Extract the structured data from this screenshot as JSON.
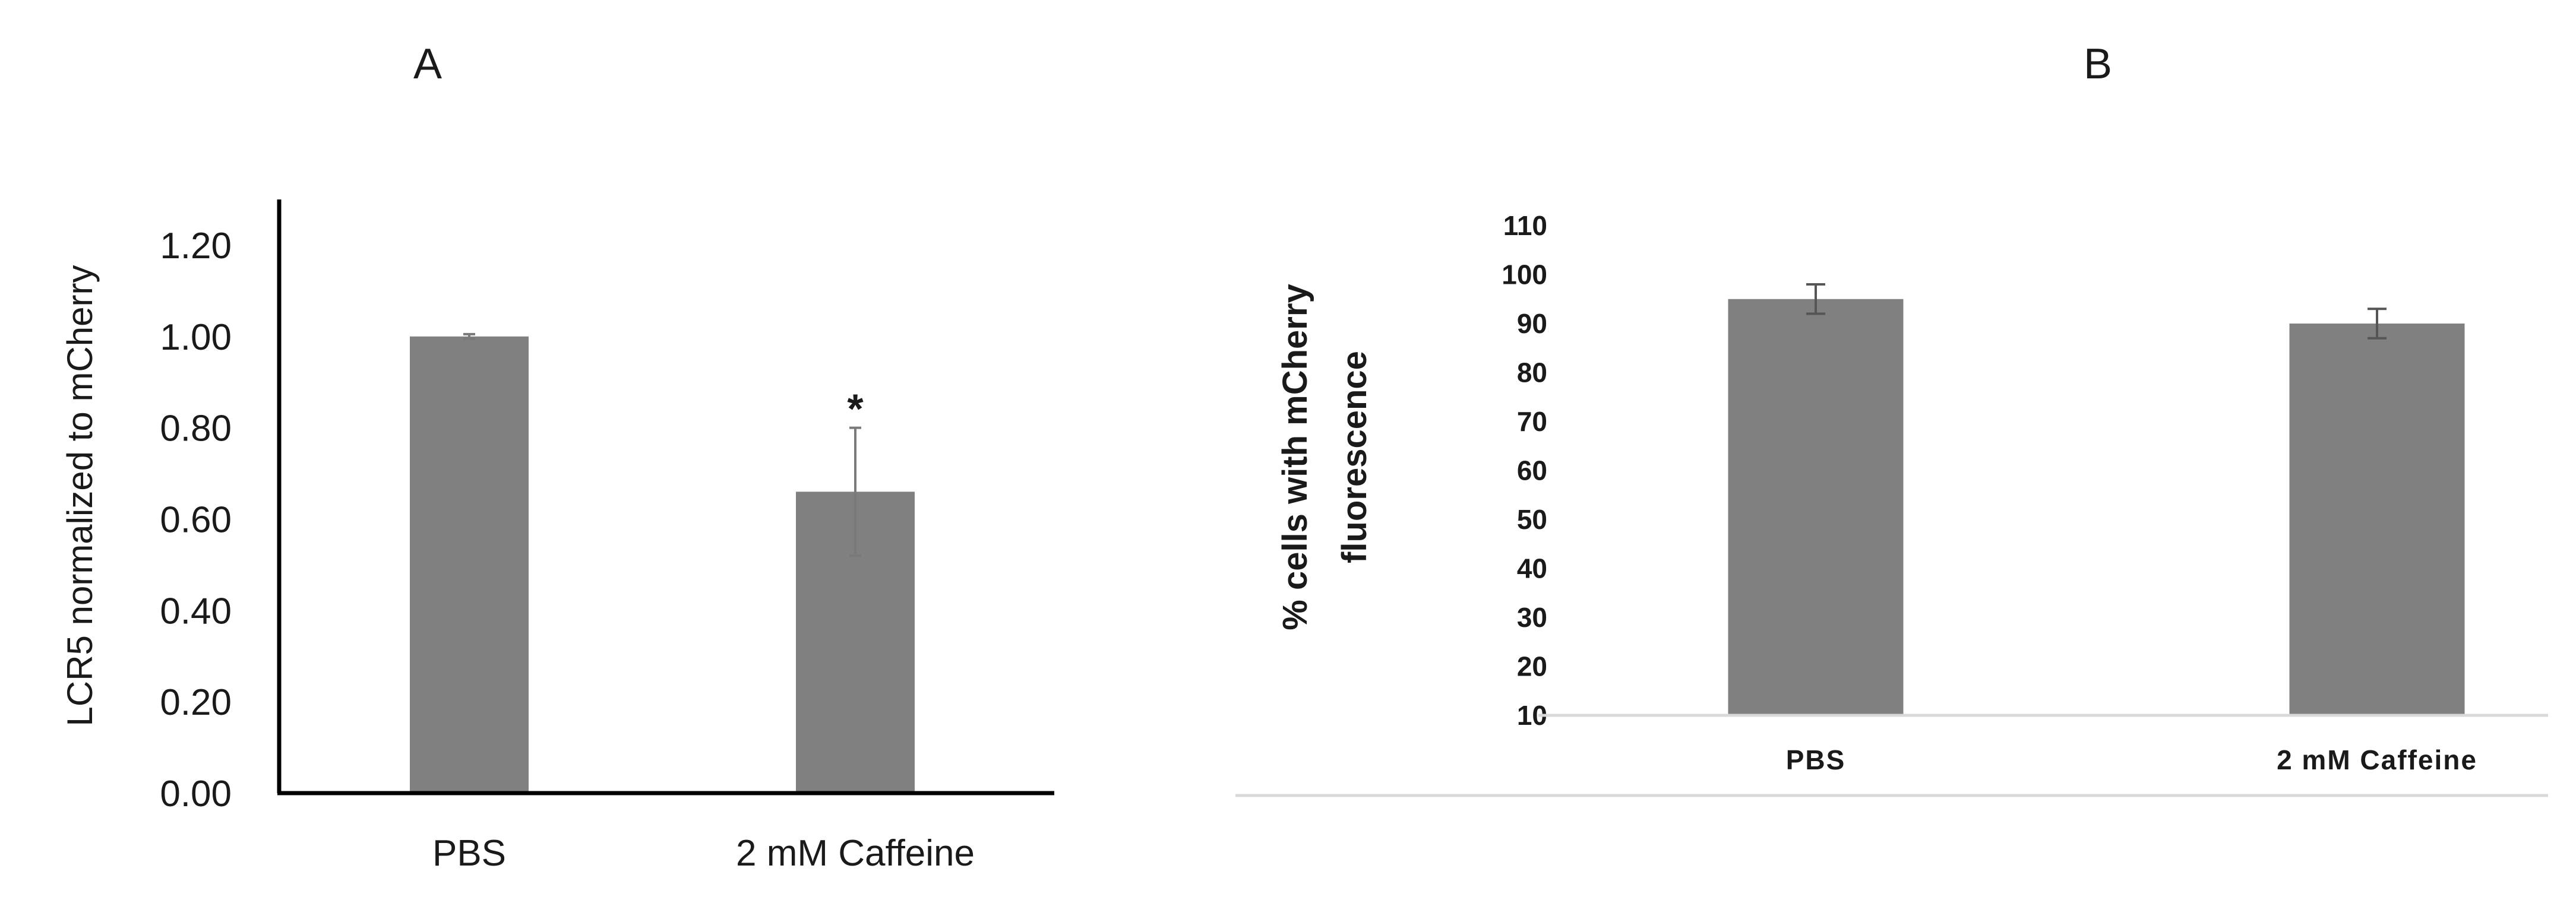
{
  "panels": {
    "a": "A",
    "b": "B"
  },
  "chart_data": [
    {
      "type": "bar",
      "categories": [
        "PBS",
        "2 mM Caffeine"
      ],
      "values": [
        1.0,
        0.66
      ],
      "errors": [
        0.005,
        0.14
      ],
      "annotations": [
        "",
        "*"
      ],
      "ylabel": "LCR5 normalized to mCherry",
      "xlabel": "",
      "ylim": [
        0,
        1.3
      ],
      "yticks": [
        "0.00",
        "0.20",
        "0.40",
        "0.60",
        "0.80",
        "1.00",
        "1.20"
      ],
      "bar_color": "#808080",
      "grid": false
    },
    {
      "type": "bar",
      "categories": [
        "PBS",
        "2 mM Caffeine"
      ],
      "values": [
        95,
        90
      ],
      "errors": [
        3,
        3
      ],
      "ylabel_lines": [
        "% cells with mCherry",
        "fluorescence"
      ],
      "xlabel": "",
      "ylim": [
        10,
        110
      ],
      "yticks": [
        "10",
        "20",
        "30",
        "40",
        "50",
        "60",
        "70",
        "80",
        "90",
        "100",
        "110"
      ],
      "bar_color": "#808080",
      "grid": false
    }
  ]
}
